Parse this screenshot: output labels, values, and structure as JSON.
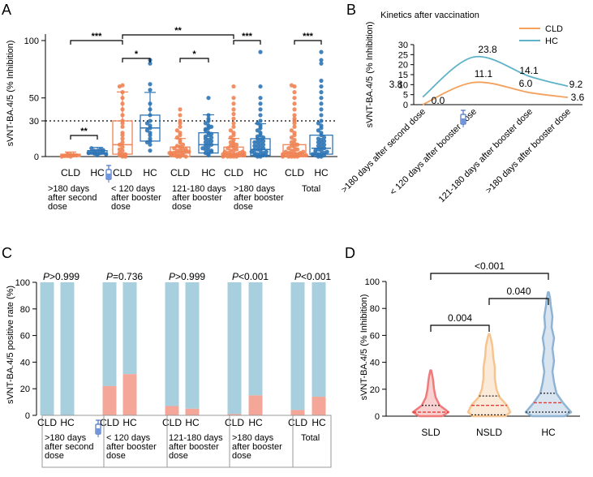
{
  "figure": {
    "panel_labels": [
      "A",
      "B",
      "C",
      "D"
    ],
    "colors": {
      "cld": "#ef8354",
      "hc": "#2e75b6",
      "kin_cld": "#f4a15d",
      "kin_hc": "#5fb3c8",
      "pos": "#f4a799",
      "neg": "#a7cfdd",
      "sld": "#ef7b7b",
      "nsld": "#f6c48f",
      "hc_violin": "#8fb4d3",
      "median": "#e53935"
    },
    "icons": {
      "syringe": "syringe-icon"
    }
  },
  "chart_data": [
    {
      "panel": "A",
      "type": "scatter",
      "ylabel": "sVNT-BA.4/5 (% Inhibition)",
      "ylim": [
        0,
        100
      ],
      "yticks": [
        "0",
        "30",
        "50",
        "100"
      ],
      "reference_line": 30,
      "x_tick_labels": [
        "CLD",
        "HC",
        "CLD",
        "HC",
        "CLD",
        "HC",
        "CLD",
        "HC",
        "CLD",
        "HC"
      ],
      "group_labels": [
        [
          ">180 days",
          "after second",
          "dose"
        ],
        [
          "< 120 days",
          "after booster",
          "dose"
        ],
        [
          "121-180 days",
          "after booster",
          "dose"
        ],
        [
          ">180 days",
          "after booster",
          "dose"
        ],
        [
          "Total"
        ]
      ],
      "series": [
        {
          "name": "CLD >180 days after second dose",
          "median": 1,
          "q1": 0,
          "q3": 2,
          "points": [
            0,
            0.5,
            1,
            1.5,
            2,
            0.5,
            1,
            0,
            1.5
          ]
        },
        {
          "name": "HC >180 days after second dose",
          "median": 3,
          "q1": 2,
          "q3": 5,
          "points": [
            1,
            2,
            2.5,
            3,
            3.5,
            4,
            4.5,
            5,
            6,
            7,
            3,
            2,
            5.5
          ]
        },
        {
          "name": "CLD < 120 days after booster dose",
          "median": 10,
          "q1": 2,
          "q3": 30,
          "points": [
            0,
            1,
            2,
            3,
            5,
            8,
            10,
            12,
            15,
            20,
            25,
            30,
            35,
            45,
            55,
            61,
            60,
            40,
            18,
            6,
            0,
            2,
            28,
            50
          ]
        },
        {
          "name": "HC < 120 days after booster dose",
          "median": 24,
          "q1": 13,
          "q3": 35,
          "points": [
            5,
            10,
            13,
            15,
            20,
            22,
            24,
            26,
            30,
            35,
            40,
            45,
            57,
            62,
            80,
            83,
            18,
            28,
            12
          ]
        },
        {
          "name": "CLD 121-180 days after booster dose",
          "median": 4,
          "q1": 0,
          "q3": 8,
          "points": [
            0,
            0,
            1,
            1,
            2,
            2,
            3,
            3,
            4,
            5,
            5,
            6,
            7,
            8,
            9,
            10,
            12,
            14,
            16,
            18,
            20,
            22,
            25,
            28,
            30,
            35,
            40,
            0,
            2,
            4,
            6,
            1,
            3
          ]
        },
        {
          "name": "HC 121-180 days after booster dose",
          "median": 10,
          "q1": 3,
          "q3": 20,
          "points": [
            1,
            2,
            3,
            5,
            6,
            8,
            9,
            10,
            11,
            12,
            14,
            15,
            16,
            18,
            20,
            22,
            24,
            26,
            28,
            30,
            32,
            35,
            5,
            7,
            13,
            17,
            19,
            23,
            25,
            50,
            4
          ]
        },
        {
          "name": "CLD >180 days after booster dose",
          "median": 2,
          "q1": 0,
          "q3": 8,
          "points": [
            0,
            0,
            0,
            0,
            1,
            1,
            1,
            2,
            2,
            2,
            3,
            3,
            4,
            4,
            5,
            5,
            6,
            7,
            8,
            9,
            10,
            11,
            12,
            14,
            16,
            18,
            20,
            22,
            25,
            28,
            32,
            36,
            40,
            45,
            50,
            60,
            0,
            1,
            2,
            3
          ]
        },
        {
          "name": "HC >180 days after booster dose",
          "median": 6,
          "q1": 1,
          "q3": 15,
          "points": [
            0,
            0,
            1,
            1,
            2,
            2,
            3,
            3,
            4,
            5,
            6,
            7,
            8,
            9,
            10,
            11,
            12,
            13,
            14,
            15,
            16,
            18,
            20,
            22,
            24,
            26,
            28,
            30,
            35,
            40,
            45,
            50,
            60,
            90,
            1,
            4,
            6,
            9,
            12,
            17
          ]
        },
        {
          "name": "CLD Total",
          "median": 3,
          "q1": 0,
          "q3": 10,
          "points": [
            0,
            0,
            0,
            0,
            1,
            1,
            1,
            2,
            2,
            2,
            3,
            3,
            4,
            4,
            5,
            5,
            6,
            7,
            8,
            9,
            10,
            11,
            12,
            14,
            16,
            18,
            20,
            22,
            25,
            28,
            30,
            32,
            35,
            40,
            45,
            50,
            55,
            60,
            61,
            0,
            1,
            2
          ]
        },
        {
          "name": "HC Total",
          "median": 7,
          "q1": 2,
          "q3": 18,
          "points": [
            0,
            0,
            1,
            1,
            2,
            2,
            3,
            3,
            4,
            5,
            6,
            7,
            8,
            9,
            10,
            11,
            12,
            13,
            14,
            15,
            16,
            18,
            20,
            22,
            24,
            26,
            28,
            30,
            35,
            40,
            45,
            50,
            55,
            60,
            65,
            80,
            83,
            90,
            2,
            5
          ]
        }
      ],
      "brackets": [
        {
          "from": 0,
          "to": 1,
          "level": 17,
          "label": "**"
        },
        {
          "from": 2,
          "to": 3,
          "level": 82,
          "label": "*"
        },
        {
          "from": 4,
          "to": 5,
          "level": 82,
          "label": "*"
        },
        {
          "from": 6,
          "to": 7,
          "level": 100,
          "label": "***"
        },
        {
          "from": 8,
          "to": 9,
          "level": 100,
          "label": "***"
        },
        {
          "from": 0,
          "to": 2,
          "level": 100,
          "label": "***"
        },
        {
          "from": 2,
          "to": 6,
          "level": 104,
          "label": "**"
        }
      ]
    },
    {
      "panel": "B",
      "type": "line",
      "title": "Kinetics after vaccination",
      "ylabel": "sVNT-BA.4/5 (% Inhibition)",
      "ylim": [
        0,
        30
      ],
      "yticks": [
        "0",
        "5",
        "10",
        "15",
        "20",
        "25",
        "30"
      ],
      "categories": [
        ">180 days after second dose",
        "< 120 days after booster dose",
        "121-180 days after booster dose",
        ">180 days after booster dose"
      ],
      "series": [
        {
          "name": "CLD",
          "values": [
            0.0,
            11.1,
            6.0,
            3.6
          ],
          "labels": [
            "0.0",
            "11.1",
            "6.0",
            "3.6"
          ]
        },
        {
          "name": "HC",
          "values": [
            3.8,
            23.8,
            14.1,
            9.2
          ],
          "labels": [
            "3.8",
            "23.8",
            "14.1",
            "9.2"
          ]
        }
      ],
      "legend": [
        "CLD",
        "HC"
      ]
    },
    {
      "panel": "C",
      "type": "bar",
      "ylabel": "sVNT-BA.4/5 positive rate (%)",
      "ylim": [
        0,
        100
      ],
      "yticks": [
        "0",
        "20",
        "40",
        "60",
        "80",
        "100"
      ],
      "x_tick_labels": [
        "CLD",
        "HC",
        "CLD",
        "HC",
        "CLD",
        "HC",
        "CLD",
        "HC",
        "CLD",
        "HC"
      ],
      "group_labels": [
        [
          ">180 days",
          "after second",
          "dose"
        ],
        [
          "< 120 days",
          "after booster",
          "dose"
        ],
        [
          "121-180 days",
          "after booster",
          "dose"
        ],
        [
          ">180 days",
          "after booster",
          "dose"
        ],
        [
          "Total"
        ]
      ],
      "p_values": [
        {
          "prefix": "P",
          "text": ">0.999"
        },
        {
          "prefix": "P",
          "text": "=0.736"
        },
        {
          "prefix": "P",
          "text": ">0.999"
        },
        {
          "prefix": "P",
          "text": "<0.001"
        },
        {
          "prefix": "P",
          "text": "<0.001"
        }
      ],
      "positive": [
        0,
        0,
        22,
        31,
        7,
        5,
        1,
        15,
        4,
        14
      ]
    },
    {
      "panel": "D",
      "type": "violin",
      "ylabel": "sVNT-BA.4/5 (% Inhibition)",
      "ylim": [
        0,
        100
      ],
      "yticks": [
        "0",
        "20",
        "40",
        "60",
        "80",
        "100"
      ],
      "categories": [
        "SLD",
        "NSLD",
        "HC"
      ],
      "series": [
        {
          "name": "SLD",
          "max": 34,
          "median": 3,
          "q1": 0,
          "q3": 8
        },
        {
          "name": "NSLD",
          "max": 61,
          "median": 8,
          "q1": 1,
          "q3": 15
        },
        {
          "name": "HC",
          "max": 92,
          "median": 10,
          "q1": 3,
          "q3": 17
        }
      ],
      "comparisons": [
        {
          "from": 0,
          "to": 1,
          "label": "0.004"
        },
        {
          "from": 1,
          "to": 2,
          "label": "0.040"
        },
        {
          "from": 0,
          "to": 2,
          "label": "<0.001"
        }
      ]
    }
  ]
}
